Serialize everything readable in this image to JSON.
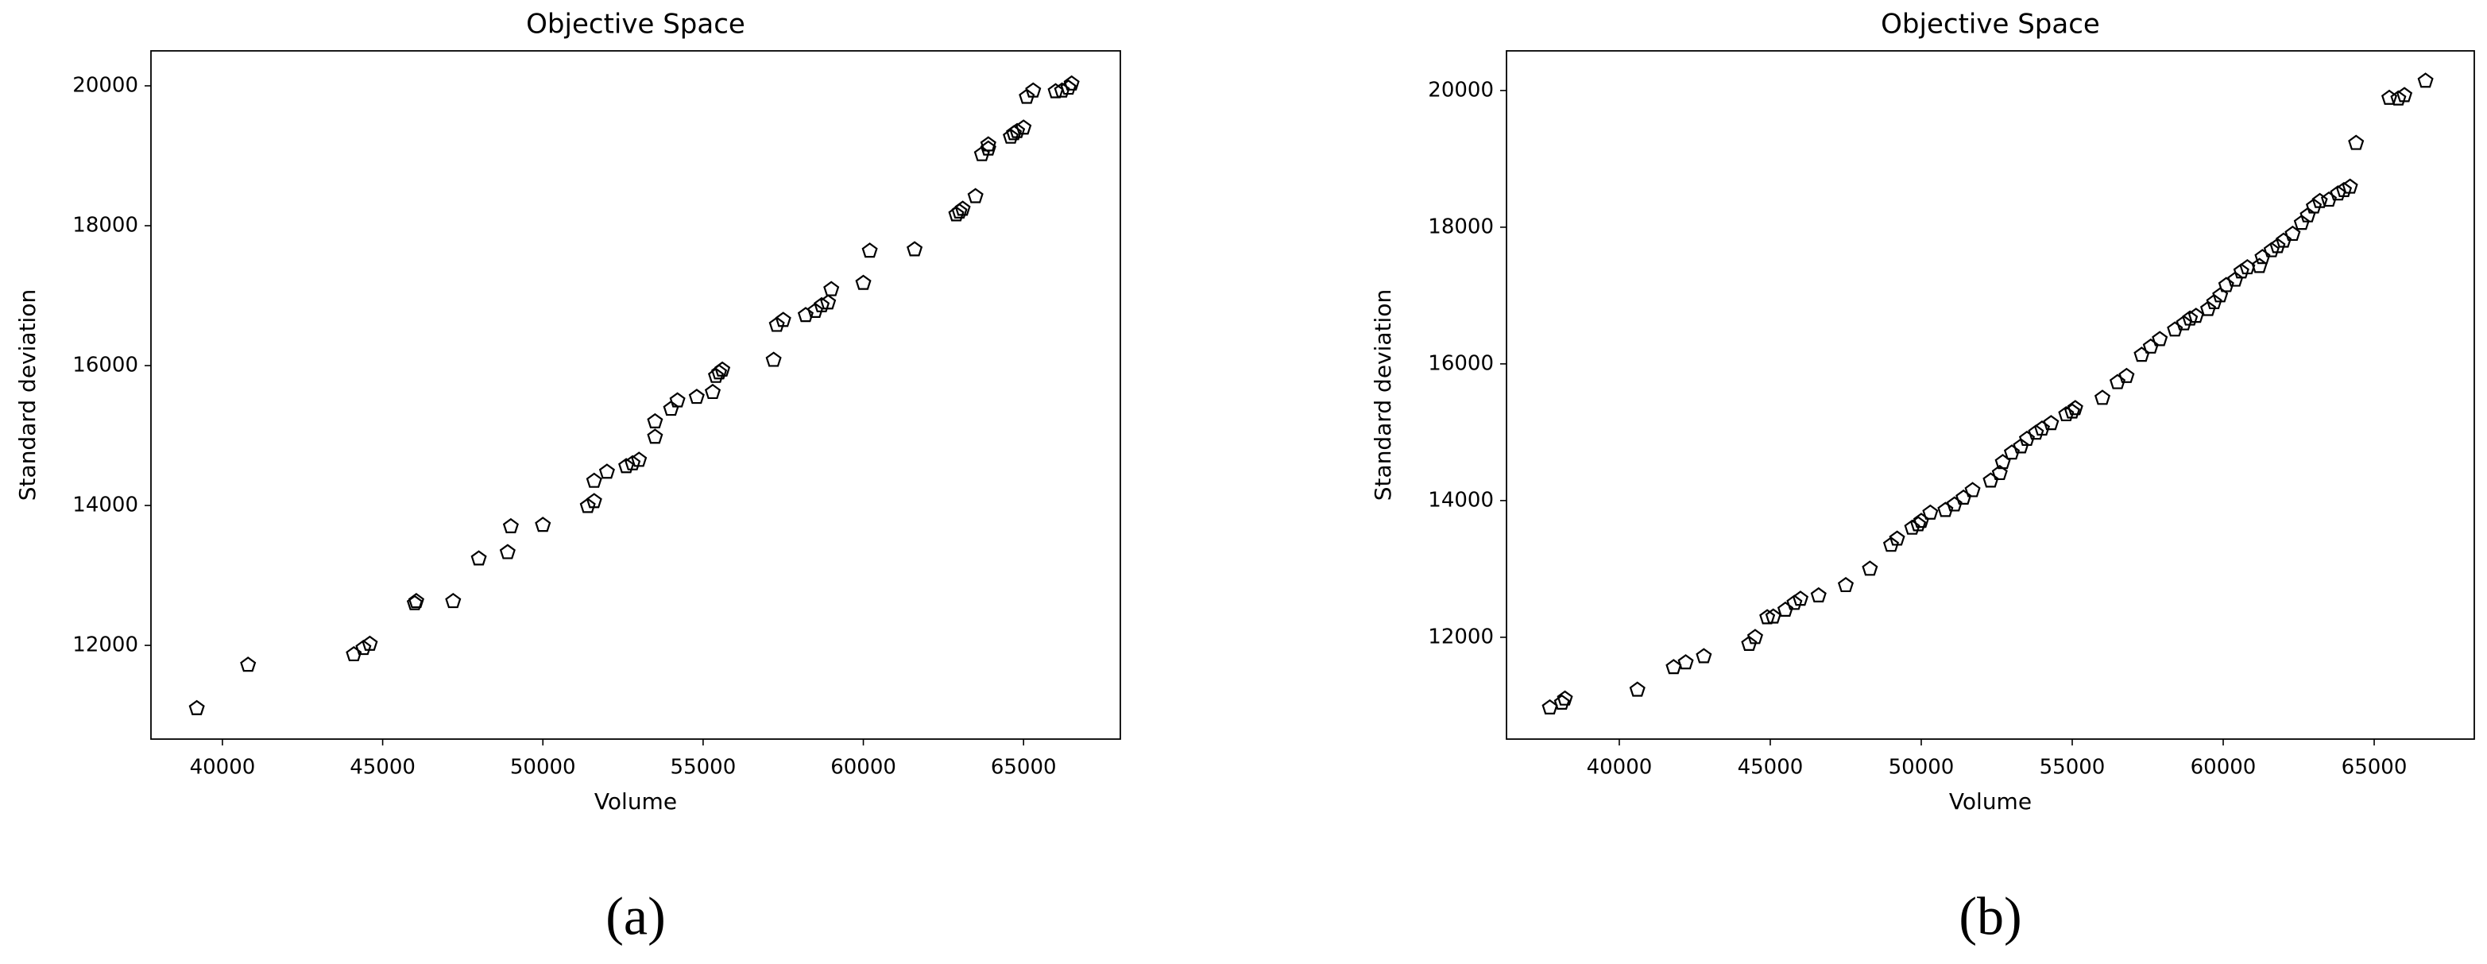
{
  "chart_data": [
    {
      "type": "scatter",
      "title": "Objective Space",
      "x_label": "Volume",
      "y_label": "Standard deviation",
      "caption": "(a)",
      "color": "#000000",
      "marker": "pentagon",
      "xlim": [
        37770,
        68020
      ],
      "ylim": [
        10660,
        20500
      ],
      "xticks": [
        40000,
        45000,
        50000,
        55000,
        60000,
        65000
      ],
      "yticks": [
        12000,
        14000,
        16000,
        18000,
        20000
      ],
      "x": [
        39200,
        40800,
        44100,
        44400,
        44600,
        46000,
        46050,
        47200,
        48000,
        48900,
        49000,
        50000,
        51400,
        51600,
        51600,
        52000,
        52600,
        52800,
        53000,
        53500,
        53500,
        54000,
        54200,
        54800,
        55300,
        55400,
        55500,
        55600,
        57200,
        57300,
        57500,
        58200,
        58500,
        58700,
        58900,
        59000,
        60000,
        60200,
        61600,
        62900,
        63000,
        63100,
        63500,
        63700,
        63900,
        63900,
        64600,
        64700,
        64800,
        65000,
        65100,
        65300,
        66000,
        66200,
        66400,
        66500
      ],
      "values": [
        11100,
        11720,
        11870,
        11960,
        12020,
        12600,
        12630,
        12630,
        13240,
        13330,
        13700,
        13720,
        13990,
        14060,
        14350,
        14480,
        14560,
        14600,
        14650,
        14980,
        15200,
        15380,
        15500,
        15550,
        15620,
        15850,
        15900,
        15940,
        16080,
        16580,
        16650,
        16720,
        16780,
        16860,
        16900,
        17090,
        17180,
        17640,
        17660,
        18160,
        18200,
        18240,
        18420,
        19020,
        19100,
        19160,
        19270,
        19320,
        19350,
        19400,
        19840,
        19930,
        19920,
        19930,
        19970,
        20030
      ]
    },
    {
      "type": "scatter",
      "title": "Objective Space",
      "x_label": "Volume",
      "y_label": "Standard deviation",
      "caption": "(b)",
      "color": "#000000",
      "marker": "pentagon",
      "xlim": [
        36265,
        68315
      ],
      "ylim": [
        10510,
        20580
      ],
      "xticks": [
        40000,
        45000,
        50000,
        55000,
        60000,
        65000
      ],
      "yticks": [
        12000,
        14000,
        16000,
        18000,
        20000
      ],
      "x": [
        37700,
        38100,
        38200,
        40600,
        41800,
        42200,
        42800,
        44300,
        44500,
        44900,
        45100,
        45500,
        45800,
        46000,
        46600,
        47500,
        48300,
        49000,
        49200,
        49700,
        49900,
        50000,
        50300,
        50800,
        51100,
        51400,
        51700,
        52300,
        52600,
        52700,
        53000,
        53300,
        53500,
        53800,
        54000,
        54300,
        54800,
        55000,
        55100,
        56000,
        56500,
        56800,
        57300,
        57600,
        57900,
        58400,
        58700,
        58900,
        59100,
        59500,
        59700,
        59900,
        60100,
        60400,
        60600,
        60800,
        61200,
        61300,
        61600,
        61800,
        62000,
        62300,
        62600,
        62800,
        63000,
        63200,
        63500,
        63800,
        64000,
        64200,
        64400,
        65500,
        65800,
        66000,
        66700
      ],
      "values": [
        10970,
        11040,
        11100,
        11230,
        11560,
        11630,
        11720,
        11900,
        12000,
        12290,
        12300,
        12400,
        12500,
        12560,
        12610,
        12760,
        13000,
        13350,
        13440,
        13600,
        13650,
        13700,
        13820,
        13860,
        13940,
        14040,
        14150,
        14290,
        14400,
        14560,
        14700,
        14790,
        14900,
        14990,
        15050,
        15130,
        15260,
        15300,
        15350,
        15500,
        15730,
        15820,
        16130,
        16250,
        16360,
        16500,
        16590,
        16660,
        16700,
        16800,
        16900,
        17000,
        17150,
        17230,
        17350,
        17410,
        17430,
        17560,
        17660,
        17720,
        17800,
        17900,
        18060,
        18170,
        18300,
        18380,
        18400,
        18490,
        18540,
        18590,
        19230,
        19890,
        19880,
        19930,
        20140
      ]
    }
  ]
}
